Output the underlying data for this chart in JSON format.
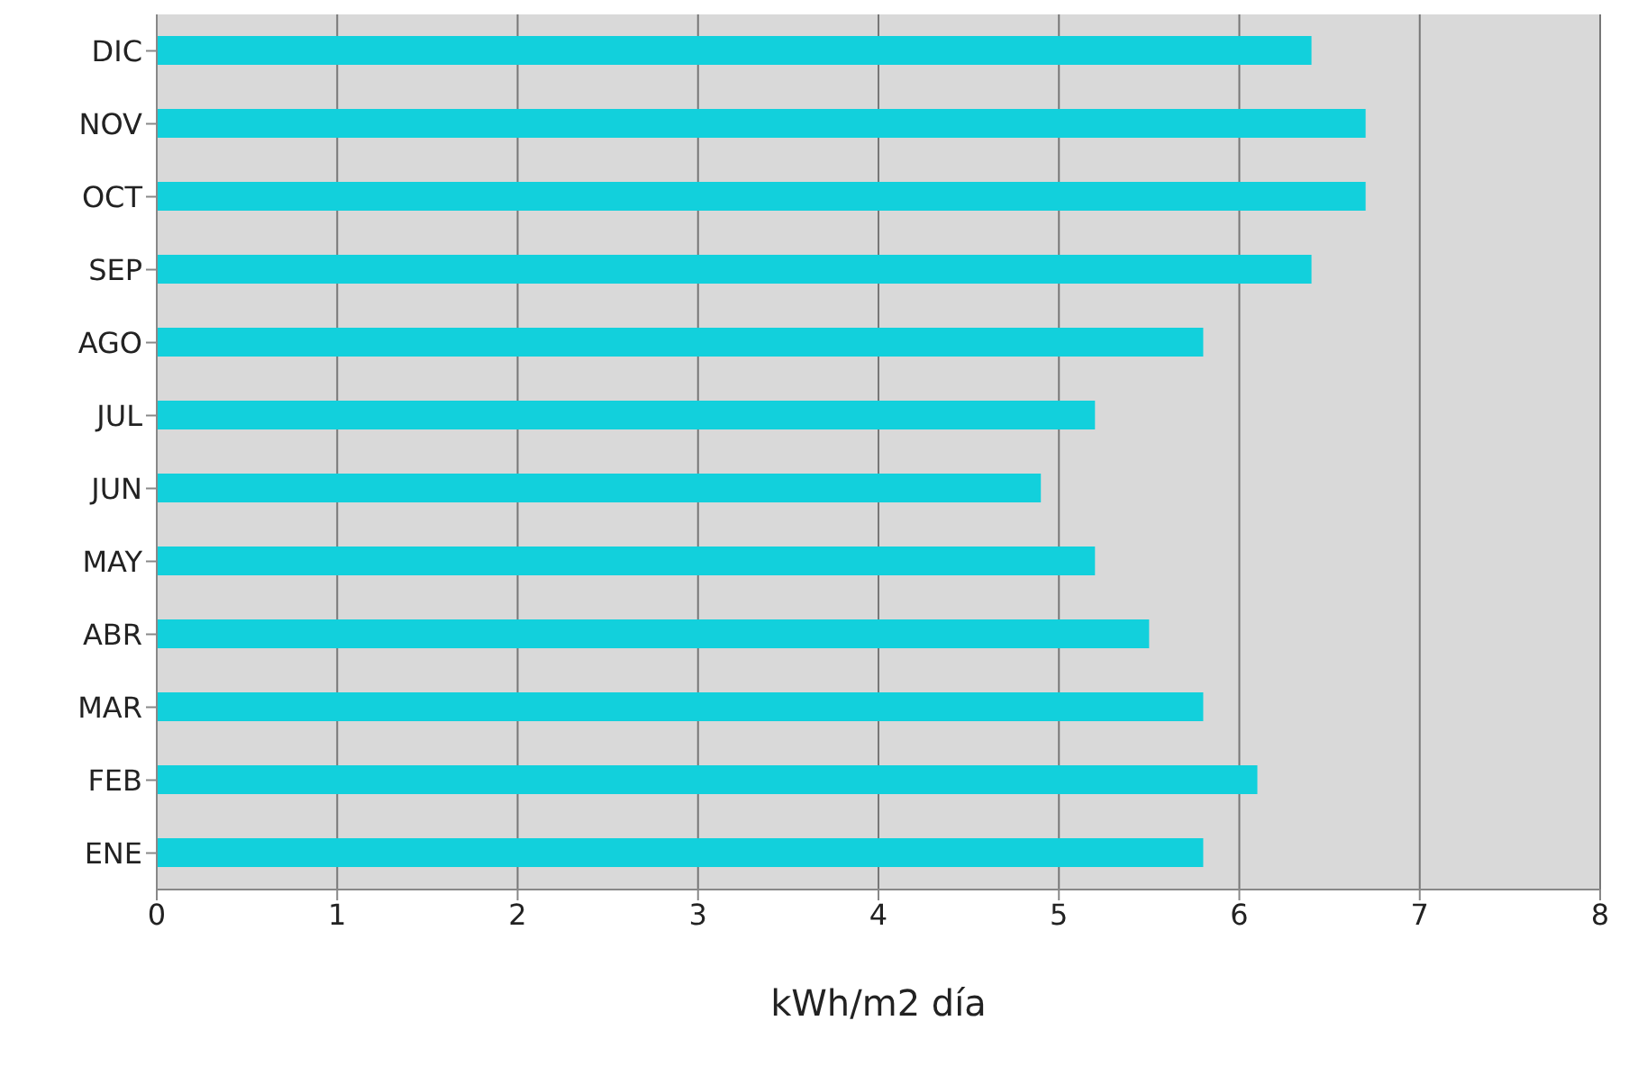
{
  "chart_data": {
    "type": "bar",
    "orientation": "horizontal",
    "xlabel": "kWh/m2 día",
    "categories": [
      "DIC",
      "NOV",
      "OCT",
      "SEP",
      "AGO",
      "JUL",
      "JUN",
      "MAY",
      "ABR",
      "MAR",
      "FEB",
      "ENE"
    ],
    "values": [
      6.4,
      6.7,
      6.7,
      6.4,
      5.8,
      5.2,
      4.9,
      5.2,
      5.5,
      5.8,
      6.1,
      5.8
    ],
    "color": "#12d0dc",
    "xlim": [
      0,
      8
    ],
    "xticks": [
      0,
      1,
      2,
      3,
      4,
      5,
      6,
      7,
      8
    ],
    "grid": "x",
    "legend": false
  }
}
